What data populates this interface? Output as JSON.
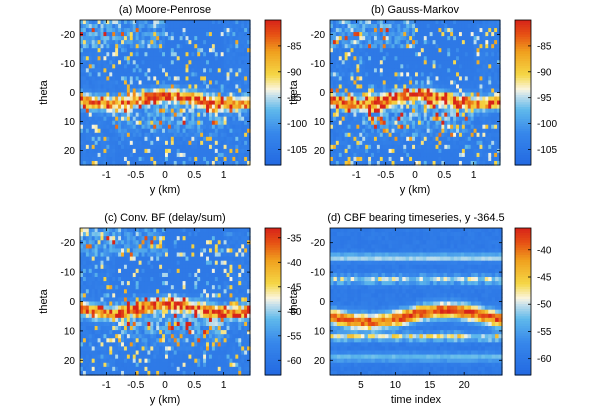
{
  "chart_data": [
    {
      "type": "heatmap",
      "title": "(a) Moore-Penrose",
      "xlabel": "y (km)",
      "ylabel": "theta",
      "xlim": [
        -1.45,
        1.45
      ],
      "ylim": [
        -25,
        25
      ],
      "y_reversed": true,
      "xticks": [
        -1,
        -0.5,
        0,
        0.5,
        1
      ],
      "yticks": [
        -20,
        -10,
        0,
        10,
        20
      ],
      "colorbar": {
        "range": [
          -108,
          -80
        ],
        "ticks": [
          -85,
          -90,
          -95,
          -100,
          -105
        ],
        "colormap": "jet-like"
      },
      "pattern": "strong band near theta 0 to 5 across y, scattered speckle elsewhere"
    },
    {
      "type": "heatmap",
      "title": "(b) Gauss-Markov",
      "xlabel": "y (km)",
      "ylabel": "theta",
      "xlim": [
        -1.45,
        1.45
      ],
      "ylim": [
        -25,
        25
      ],
      "y_reversed": true,
      "xticks": [
        -1,
        -0.5,
        0,
        0.5,
        1
      ],
      "yticks": [
        -20,
        -10,
        0,
        10,
        20
      ],
      "colorbar": {
        "range": [
          -108,
          -80
        ],
        "ticks": [
          -85,
          -90,
          -95,
          -100,
          -105
        ],
        "colormap": "jet-like"
      },
      "pattern": "same structure as (a)"
    },
    {
      "type": "heatmap",
      "title": "(c) Conv. BF (delay/sum)",
      "xlabel": "y (km)",
      "ylabel": "theta",
      "xlim": [
        -1.45,
        1.45
      ],
      "ylim": [
        -25,
        25
      ],
      "y_reversed": true,
      "xticks": [
        -1,
        -0.5,
        0,
        0.5,
        1
      ],
      "yticks": [
        -20,
        -10,
        0,
        10,
        20
      ],
      "colorbar": {
        "range": [
          -63,
          -33
        ],
        "ticks": [
          -35,
          -40,
          -45,
          -50,
          -55,
          -60
        ],
        "colormap": "jet-like"
      },
      "pattern": "same structure as (a)"
    },
    {
      "type": "heatmap",
      "title": "(d) CBF bearing timeseries, y   -364.5",
      "xlabel": "time index",
      "ylabel": "theta",
      "xlim": [
        0.5,
        25.5
      ],
      "ylim": [
        -25,
        25
      ],
      "y_reversed": true,
      "xticks": [
        5,
        10,
        15,
        20
      ],
      "yticks": [
        -20,
        -10,
        0,
        10,
        20
      ],
      "colorbar": {
        "range": [
          -63,
          -36
        ],
        "ticks": [
          -40,
          -45,
          -50,
          -55,
          -60
        ],
        "colormap": "jet-like"
      },
      "pattern": "strong band near theta 2 to 7 across time, weaker horizontal bands near theta -15, -8, 12, 20"
    }
  ]
}
